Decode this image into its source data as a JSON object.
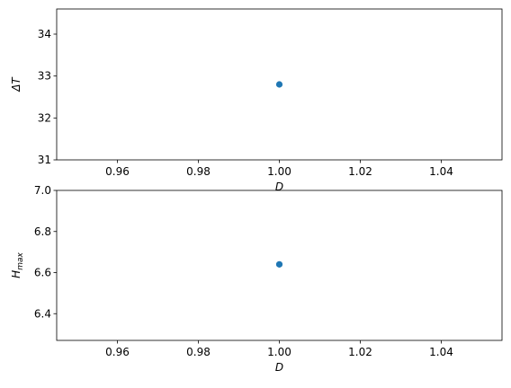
{
  "chart_data": [
    {
      "type": "scatter",
      "title": "",
      "xlabel": "D",
      "ylabel": "ΔT",
      "xlim": [
        0.945,
        1.055
      ],
      "ylim": [
        31.0,
        34.6
      ],
      "xticks": [
        0.96,
        0.98,
        1.0,
        1.02,
        1.04
      ],
      "xtick_labels": [
        "0.96",
        "0.98",
        "1.00",
        "1.02",
        "1.04"
      ],
      "yticks": [
        31,
        32,
        33,
        34
      ],
      "ytick_labels": [
        "31",
        "32",
        "33",
        "34"
      ],
      "grid": false,
      "color": "#1f77b4",
      "points": [
        {
          "x": 1.0,
          "y": 32.8
        }
      ]
    },
    {
      "type": "scatter",
      "title": "",
      "xlabel": "D",
      "ylabel": "H_max",
      "ylabel_main": "H",
      "ylabel_sub": "max",
      "xlim": [
        0.945,
        1.055
      ],
      "ylim": [
        6.27,
        7.0
      ],
      "xticks": [
        0.96,
        0.98,
        1.0,
        1.02,
        1.04
      ],
      "xtick_labels": [
        "0.96",
        "0.98",
        "1.00",
        "1.02",
        "1.04"
      ],
      "yticks": [
        6.4,
        6.6,
        6.8,
        7.0
      ],
      "ytick_labels": [
        "6.4",
        "6.6",
        "6.8",
        "7.0"
      ],
      "grid": false,
      "color": "#1f77b4",
      "points": [
        {
          "x": 1.0,
          "y": 6.64
        }
      ]
    }
  ]
}
